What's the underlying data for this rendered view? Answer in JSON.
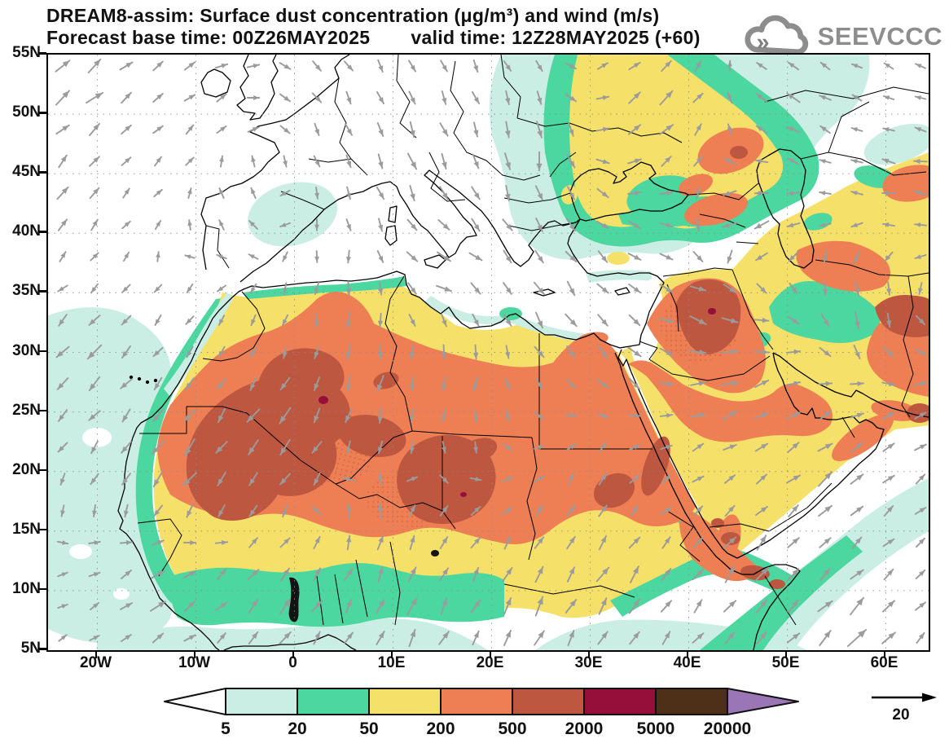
{
  "header": {
    "title": "DREAM8-assim: Surface dust concentration (μg/m³) and wind (m/s)",
    "subtitle_left": "Forecast base time: 00Z26MAY2025",
    "subtitle_right": "valid time: 12Z28MAY2025 (+60)"
  },
  "logo": {
    "text": "SEEVCCC",
    "color": "#8d8d8d"
  },
  "axes": {
    "lat": [
      "55N",
      "50N",
      "45N",
      "40N",
      "35N",
      "30N",
      "25N",
      "20N",
      "15N",
      "10N",
      "5N"
    ],
    "lon": [
      "20W",
      "10W",
      "0",
      "10E",
      "20E",
      "30E",
      "40E",
      "50E",
      "60E"
    ]
  },
  "legend": {
    "labels": [
      "5",
      "20",
      "50",
      "200",
      "500",
      "2000",
      "5000",
      "20000"
    ],
    "colors": [
      "#cbeee4",
      "#4cd6a0",
      "#f5e16a",
      "#ee7f54",
      "#bd5740",
      "#960e3a",
      "#4e3018",
      "#9b76b7"
    ],
    "below_color": "#ffffff"
  },
  "wind_scale": {
    "label": "20"
  },
  "wind_arrows": {
    "color": "#9b9b9b",
    "reference_ms": 20
  },
  "chart_data": {
    "type": "heatmap",
    "title": "DREAM8-assim: Surface dust concentration (μg/m³) and wind (m/s)",
    "variable": "Surface dust concentration",
    "units": "μg/m³",
    "overlay": "wind (m/s)",
    "model": "DREAM8-assim",
    "forecast_base_time": "00Z26MAY2025",
    "valid_time": "12Z28MAY2025",
    "forecast_hour": "+60",
    "contour_levels": [
      5,
      20,
      50,
      200,
      500,
      2000,
      5000,
      20000
    ],
    "level_colors": [
      "#cbeee4",
      "#4cd6a0",
      "#f5e16a",
      "#ee7f54",
      "#bd5740",
      "#960e3a",
      "#4e3018",
      "#9b76b7"
    ],
    "lat_ticks": [
      "55N",
      "50N",
      "45N",
      "40N",
      "35N",
      "30N",
      "25N",
      "20N",
      "15N",
      "10N",
      "5N"
    ],
    "lon_ticks": [
      "20W",
      "10W",
      "0",
      "10E",
      "20E",
      "30E",
      "40E",
      "50E",
      "60E"
    ],
    "wind_reference_ms": 20,
    "region": "North Africa, Europe and Middle East",
    "legend_position": "bottom"
  }
}
